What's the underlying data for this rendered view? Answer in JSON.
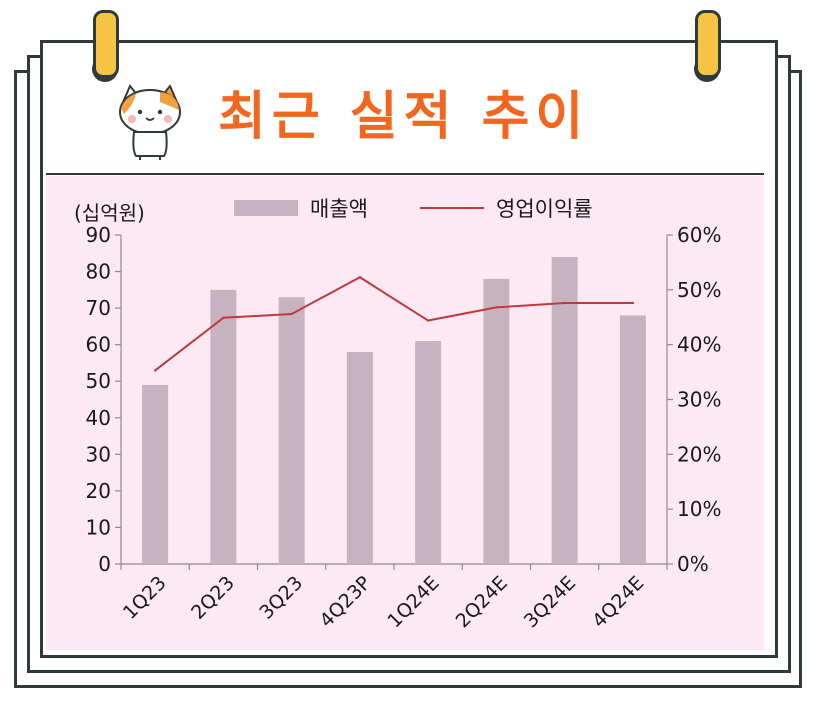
{
  "title": "최근 실적 추이",
  "icons": {
    "mascot": "cat-mascot-icon"
  },
  "colors": {
    "title": "#f2671f",
    "bar": "#c7b3bf",
    "line": "#c0393b",
    "panel": "#fde9f3"
  },
  "chart_data": {
    "type": "bar",
    "categories": [
      "1Q23",
      "2Q23",
      "3Q23",
      "4Q23P",
      "1Q24E",
      "2Q24E",
      "3Q24E",
      "4Q24E"
    ],
    "series": [
      {
        "name": "매출액",
        "type": "bar",
        "axis": "left",
        "values": [
          49,
          75,
          73,
          58,
          61,
          78,
          84,
          68
        ]
      },
      {
        "name": "영업이익률",
        "type": "line",
        "axis": "right",
        "values": [
          35.3,
          44.9,
          45.6,
          52.3,
          44.4,
          46.8,
          47.6,
          47.6
        ]
      }
    ],
    "ylabel": "(십억원)",
    "ylim": [
      0,
      90
    ],
    "yticks": [
      "0",
      "10",
      "20",
      "30",
      "40",
      "50",
      "60",
      "70",
      "80",
      "90"
    ],
    "y2lim": [
      0,
      60
    ],
    "y2ticks": [
      "0%",
      "10%",
      "20%",
      "30%",
      "40%",
      "50%",
      "60%"
    ],
    "legend_position": "top-center",
    "grid": false
  }
}
